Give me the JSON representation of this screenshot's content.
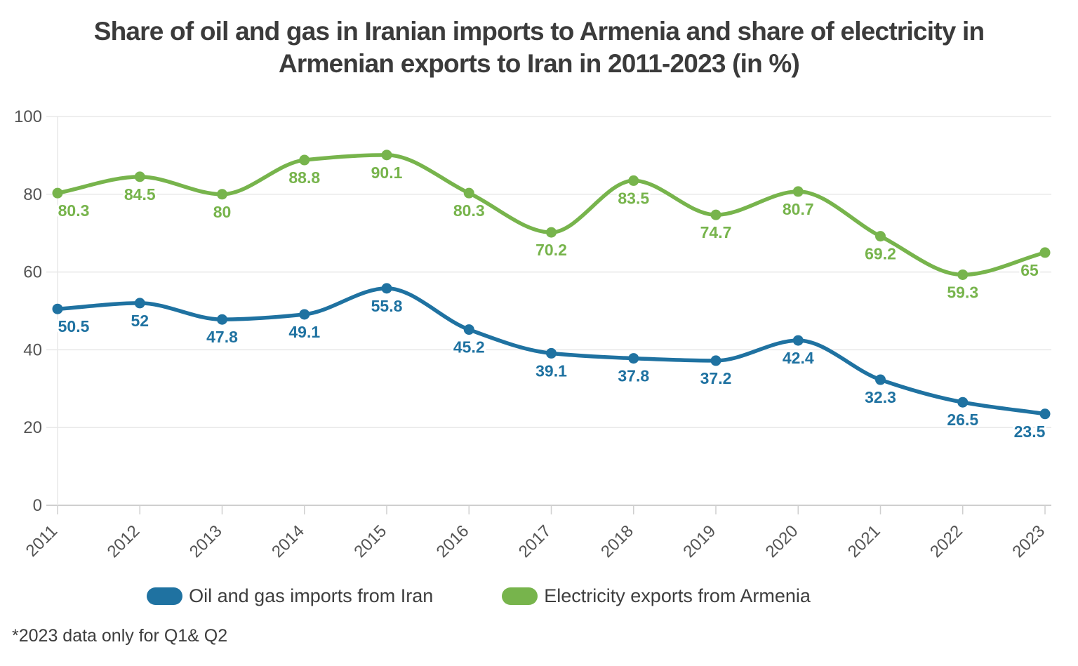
{
  "header": {
    "title_lines": [
      "Share of oil and gas in Iranian imports to Armenia and share of electricity in",
      "Armenian exports to Iran in 2011-2023 (in %)"
    ]
  },
  "footnote": "*2023 data only for Q1& Q2",
  "colors": {
    "blue": "#1f72a1",
    "green": "#77b44c",
    "grid": "#e8e8e8",
    "axis": "#cfcfcf",
    "axis_text": "#545454",
    "title_text": "#3b3b3b",
    "legend_text": "#3e3e3e"
  },
  "chart_data": {
    "type": "line",
    "title": "Share of oil and gas in Iranian imports to Armenia and share of electricity in Armenian exports to Iran in 2011-2023 (in %)",
    "x": [
      2011,
      2012,
      2013,
      2014,
      2015,
      2016,
      2017,
      2018,
      2019,
      2020,
      2021,
      2022,
      2023
    ],
    "series": [
      {
        "name": "Oil and gas imports from Iran",
        "color": "#1f72a1",
        "values": [
          50.5,
          52,
          47.8,
          49.1,
          55.8,
          45.2,
          39.1,
          37.8,
          37.2,
          42.4,
          32.3,
          26.5,
          23.5
        ]
      },
      {
        "name": "Electricity exports from Armenia",
        "color": "#77b44c",
        "values": [
          80.3,
          84.5,
          80,
          88.8,
          90.1,
          80.3,
          70.2,
          83.5,
          74.7,
          80.7,
          69.2,
          59.3,
          65
        ]
      }
    ],
    "ylim": [
      0,
      100
    ],
    "yticks": [
      0,
      20,
      40,
      60,
      80,
      100
    ],
    "grid": "horizontal",
    "curve": "monotone",
    "point_labels": true,
    "legend_position": "bottom",
    "footnote": "*2023 data only for Q1& Q2"
  }
}
